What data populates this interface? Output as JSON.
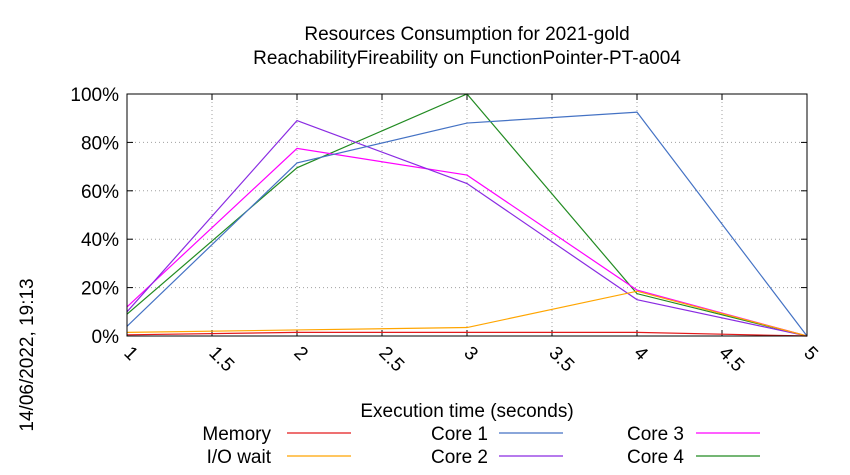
{
  "timestamp": "14/06/2022, 19:13",
  "chart_data": {
    "type": "line",
    "title": "Resources Consumption for 2021-gold",
    "subtitle": "ReachabilityFireability on FunctionPointer-PT-a004",
    "xlabel": "Execution time (seconds)",
    "ylabel": "",
    "xlim": [
      1,
      5
    ],
    "ylim": [
      0,
      100
    ],
    "x_ticks": [
      "1",
      "1.5",
      "2",
      "2.5",
      "3",
      "3.5",
      "4",
      "4.5",
      "5"
    ],
    "y_ticks": [
      "0%",
      "20%",
      "40%",
      "60%",
      "80%",
      "100%"
    ],
    "grid": true,
    "legend_position": "bottom",
    "x": [
      1,
      2,
      3,
      4,
      5
    ],
    "series": [
      {
        "name": "Memory",
        "color": "#e41a1c",
        "values": [
          0.5,
          1.5,
          1.5,
          1.5,
          0
        ]
      },
      {
        "name": "I/O wait",
        "color": "#ffa500",
        "values": [
          1.5,
          2.5,
          3.5,
          18.5,
          0
        ]
      },
      {
        "name": "Core 1",
        "color": "#4472c4",
        "values": [
          4,
          71.5,
          88,
          92.5,
          0
        ]
      },
      {
        "name": "Core 2",
        "color": "#8a2be2",
        "values": [
          10,
          89,
          63,
          15,
          0
        ]
      },
      {
        "name": "Core 3",
        "color": "#ff00ff",
        "values": [
          12,
          77.5,
          66.5,
          19,
          0
        ]
      },
      {
        "name": "Core 4",
        "color": "#228b22",
        "values": [
          9,
          69.5,
          100,
          17.5,
          0
        ]
      }
    ]
  }
}
